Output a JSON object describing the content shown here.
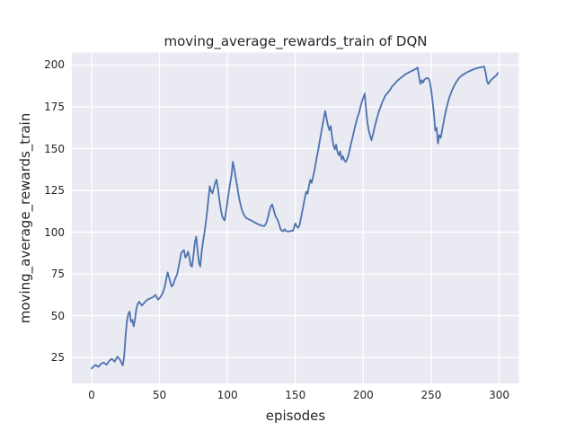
{
  "figure": {
    "title": "moving_average_rewards_train of DQN",
    "xlabel": "episodes",
    "ylabel": "moving_average_rewards_train"
  },
  "chart_data": {
    "type": "line",
    "title": "moving_average_rewards_train of DQN",
    "xlabel": "episodes",
    "ylabel": "moving_average_rewards_train",
    "x_ticks": [
      0,
      50,
      100,
      150,
      200,
      250,
      300
    ],
    "y_ticks": [
      25,
      50,
      75,
      100,
      125,
      150,
      175,
      200
    ],
    "xlim": [
      -14.5,
      314.5
    ],
    "ylim": [
      9.5,
      207.5
    ],
    "grid": true,
    "legend_position": "none",
    "panel_bg": "#eaeaf2",
    "grid_color": "#ffffff",
    "line_color": "#4c72b0",
    "text_color": "#262626",
    "series": [
      {
        "name": "moving_average_rewards_train",
        "points": [
          [
            0,
            18.5
          ],
          [
            1,
            19.2
          ],
          [
            2,
            19.8
          ],
          [
            3,
            20.6
          ],
          [
            4,
            19.9
          ],
          [
            5,
            19.4
          ],
          [
            6,
            20.3
          ],
          [
            7,
            21.2
          ],
          [
            8,
            21.7
          ],
          [
            9,
            22
          ],
          [
            10,
            21.3
          ],
          [
            11,
            20.7
          ],
          [
            12,
            21.8
          ],
          [
            13,
            23
          ],
          [
            14,
            23.7
          ],
          [
            15,
            24.2
          ],
          [
            16,
            23.3
          ],
          [
            17,
            22.5
          ],
          [
            18,
            24
          ],
          [
            19,
            25.5
          ],
          [
            20,
            24.6
          ],
          [
            21,
            23.6
          ],
          [
            22,
            21.8
          ],
          [
            23,
            20.2
          ],
          [
            24,
            25.7
          ],
          [
            25,
            37.4
          ],
          [
            26,
            46.3
          ],
          [
            27,
            51
          ],
          [
            28,
            52.5
          ],
          [
            29,
            46.3
          ],
          [
            30,
            47.5
          ],
          [
            31,
            43.6
          ],
          [
            32,
            48
          ],
          [
            33,
            54.3
          ],
          [
            34,
            57
          ],
          [
            35,
            58.4
          ],
          [
            36,
            57.2
          ],
          [
            37,
            56.1
          ],
          [
            38,
            57
          ],
          [
            39,
            57.9
          ],
          [
            40,
            58.8
          ],
          [
            41,
            59.5
          ],
          [
            42,
            59.9
          ],
          [
            43,
            60.3
          ],
          [
            44,
            60.7
          ],
          [
            45,
            61
          ],
          [
            46,
            61.7
          ],
          [
            47,
            62.4
          ],
          [
            48,
            61
          ],
          [
            49,
            59.7
          ],
          [
            50,
            60.5
          ],
          [
            51,
            61.5
          ],
          [
            52,
            63
          ],
          [
            53,
            65
          ],
          [
            54,
            67.8
          ],
          [
            55,
            72
          ],
          [
            56,
            75.9
          ],
          [
            57,
            73
          ],
          [
            58,
            70
          ],
          [
            59,
            67.5
          ],
          [
            60,
            68.5
          ],
          [
            61,
            71
          ],
          [
            62,
            73
          ],
          [
            63,
            74.9
          ],
          [
            64,
            79
          ],
          [
            65,
            83
          ],
          [
            66,
            87.5
          ],
          [
            67,
            88.5
          ],
          [
            68,
            89.3
          ],
          [
            69,
            84.8
          ],
          [
            70,
            86
          ],
          [
            71,
            88.4
          ],
          [
            72,
            85
          ],
          [
            73,
            80
          ],
          [
            74,
            79.4
          ],
          [
            75,
            86
          ],
          [
            76,
            94
          ],
          [
            77,
            97.3
          ],
          [
            78,
            89
          ],
          [
            79,
            82
          ],
          [
            80,
            79.4
          ],
          [
            81,
            88
          ],
          [
            82,
            94
          ],
          [
            83,
            99
          ],
          [
            84,
            105
          ],
          [
            85,
            112
          ],
          [
            86,
            120
          ],
          [
            87,
            127.5
          ],
          [
            88,
            124.5
          ],
          [
            89,
            123.2
          ],
          [
            90,
            126.5
          ],
          [
            91,
            129.5
          ],
          [
            92,
            131.5
          ],
          [
            93,
            126
          ],
          [
            94,
            119.7
          ],
          [
            95,
            114.3
          ],
          [
            96,
            110
          ],
          [
            97,
            108
          ],
          [
            98,
            107.1
          ],
          [
            99,
            112.5
          ],
          [
            100,
            117.9
          ],
          [
            101,
            124.2
          ],
          [
            102,
            129.5
          ],
          [
            103,
            134
          ],
          [
            104,
            142.1
          ],
          [
            105,
            138
          ],
          [
            106,
            133.1
          ],
          [
            107,
            128.6
          ],
          [
            108,
            123.2
          ],
          [
            109,
            118.8
          ],
          [
            110,
            115.2
          ],
          [
            111,
            112.5
          ],
          [
            112,
            110.7
          ],
          [
            113,
            109.3
          ],
          [
            114,
            108.5
          ],
          [
            115,
            108
          ],
          [
            116,
            107.6
          ],
          [
            117,
            107.2
          ],
          [
            118,
            106.8
          ],
          [
            119,
            106.3
          ],
          [
            120,
            105.8
          ],
          [
            121,
            105.4
          ],
          [
            122,
            105
          ],
          [
            123,
            104.6
          ],
          [
            124,
            104.3
          ],
          [
            125,
            104
          ],
          [
            126,
            103.8
          ],
          [
            127,
            103.7
          ],
          [
            128,
            104.5
          ],
          [
            129,
            106.5
          ],
          [
            130,
            109.5
          ],
          [
            131,
            113
          ],
          [
            132,
            115.5
          ],
          [
            133,
            116.6
          ],
          [
            134,
            113.5
          ],
          [
            135,
            110.5
          ],
          [
            136,
            108.5
          ],
          [
            137,
            107.3
          ],
          [
            138,
            105
          ],
          [
            139,
            102
          ],
          [
            140,
            100.9
          ],
          [
            141,
            100.5
          ],
          [
            142,
            101.8
          ],
          [
            143,
            100.7
          ],
          [
            144,
            100.4
          ],
          [
            145,
            100.6
          ],
          [
            146,
            100.4
          ],
          [
            147,
            100.9
          ],
          [
            148,
            100.7
          ],
          [
            149,
            102.5
          ],
          [
            150,
            105.3
          ],
          [
            151,
            103.5
          ],
          [
            152,
            102.6
          ],
          [
            153,
            104
          ],
          [
            154,
            108
          ],
          [
            155,
            112
          ],
          [
            156,
            116.1
          ],
          [
            157,
            120.6
          ],
          [
            158,
            124.2
          ],
          [
            159,
            123
          ],
          [
            160,
            127.7
          ],
          [
            161,
            131.3
          ],
          [
            162,
            129.5
          ],
          [
            163,
            133
          ],
          [
            164,
            136.7
          ],
          [
            165,
            141.2
          ],
          [
            166,
            145.7
          ],
          [
            167,
            150
          ],
          [
            168,
            155
          ],
          [
            169,
            159.5
          ],
          [
            170,
            164
          ],
          [
            171,
            168.5
          ],
          [
            172,
            172.5
          ],
          [
            173,
            168
          ],
          [
            174,
            164
          ],
          [
            175,
            161
          ],
          [
            176,
            163.5
          ],
          [
            177,
            157
          ],
          [
            178,
            152
          ],
          [
            179,
            149.5
          ],
          [
            180,
            152.5
          ],
          [
            181,
            148
          ],
          [
            182,
            146
          ],
          [
            183,
            148.4
          ],
          [
            184,
            143.5
          ],
          [
            185,
            145.5
          ],
          [
            186,
            143
          ],
          [
            187,
            142
          ],
          [
            188,
            143.5
          ],
          [
            189,
            145.6
          ],
          [
            190,
            149.2
          ],
          [
            191,
            153
          ],
          [
            192,
            156.4
          ],
          [
            193,
            160
          ],
          [
            194,
            163.5
          ],
          [
            195,
            166.5
          ],
          [
            196,
            169.5
          ],
          [
            197,
            171.6
          ],
          [
            198,
            175.2
          ],
          [
            199,
            178
          ],
          [
            200,
            180.6
          ],
          [
            201,
            183
          ],
          [
            202,
            174
          ],
          [
            203,
            166
          ],
          [
            204,
            160.8
          ],
          [
            205,
            158
          ],
          [
            206,
            155
          ],
          [
            207,
            158
          ],
          [
            208,
            161.7
          ],
          [
            209,
            165
          ],
          [
            210,
            168
          ],
          [
            211,
            171
          ],
          [
            212,
            173.4
          ],
          [
            213,
            175.5
          ],
          [
            214,
            177.9
          ],
          [
            215,
            179.5
          ],
          [
            216,
            181.5
          ],
          [
            217,
            182.5
          ],
          [
            218,
            183.5
          ],
          [
            219,
            184.5
          ],
          [
            220,
            185.5
          ],
          [
            221,
            186.9
          ],
          [
            222,
            187.8
          ],
          [
            223,
            188.7
          ],
          [
            224,
            189.6
          ],
          [
            225,
            190.5
          ],
          [
            226,
            191.2
          ],
          [
            227,
            191.9
          ],
          [
            228,
            192.6
          ],
          [
            229,
            193.2
          ],
          [
            230,
            193.8
          ],
          [
            231,
            194.4
          ],
          [
            232,
            194.9
          ],
          [
            233,
            195.4
          ],
          [
            234,
            195.8
          ],
          [
            235,
            196.2
          ],
          [
            236,
            196.6
          ],
          [
            237,
            197
          ],
          [
            238,
            197.4
          ],
          [
            239,
            197.8
          ],
          [
            240,
            198.6
          ],
          [
            241,
            193
          ],
          [
            242,
            188.7
          ],
          [
            243,
            190.9
          ],
          [
            244,
            189.5
          ],
          [
            245,
            191.4
          ],
          [
            246,
            191.8
          ],
          [
            247,
            192.3
          ],
          [
            248,
            192
          ],
          [
            249,
            190
          ],
          [
            250,
            185.1
          ],
          [
            251,
            177.9
          ],
          [
            252,
            170.7
          ],
          [
            253,
            160.8
          ],
          [
            254,
            162.5
          ],
          [
            255,
            153
          ],
          [
            256,
            158.1
          ],
          [
            257,
            156.5
          ],
          [
            258,
            161
          ],
          [
            259,
            165.3
          ],
          [
            260,
            169.8
          ],
          [
            261,
            173.4
          ],
          [
            262,
            176.5
          ],
          [
            263,
            179.7
          ],
          [
            264,
            182
          ],
          [
            265,
            184.2
          ],
          [
            266,
            186
          ],
          [
            267,
            187.8
          ],
          [
            268,
            189.3
          ],
          [
            269,
            190.5
          ],
          [
            270,
            191.7
          ],
          [
            271,
            192.7
          ],
          [
            272,
            193.4
          ],
          [
            273,
            194
          ],
          [
            274,
            194.5
          ],
          [
            275,
            195
          ],
          [
            276,
            195.5
          ],
          [
            277,
            195.9
          ],
          [
            278,
            196.3
          ],
          [
            279,
            196.7
          ],
          [
            280,
            197
          ],
          [
            281,
            197.4
          ],
          [
            282,
            197.7
          ],
          [
            283,
            198
          ],
          [
            284,
            198.2
          ],
          [
            285,
            198.4
          ],
          [
            286,
            198.6
          ],
          [
            287,
            198.8
          ],
          [
            288,
            198.9
          ],
          [
            289,
            199.1
          ],
          [
            290,
            195.5
          ],
          [
            291,
            190.5
          ],
          [
            292,
            188.7
          ],
          [
            293,
            190
          ],
          [
            294,
            191
          ],
          [
            295,
            191.8
          ],
          [
            296,
            192.5
          ],
          [
            297,
            193.2
          ],
          [
            298,
            193.8
          ],
          [
            299,
            195.3
          ]
        ]
      }
    ]
  }
}
